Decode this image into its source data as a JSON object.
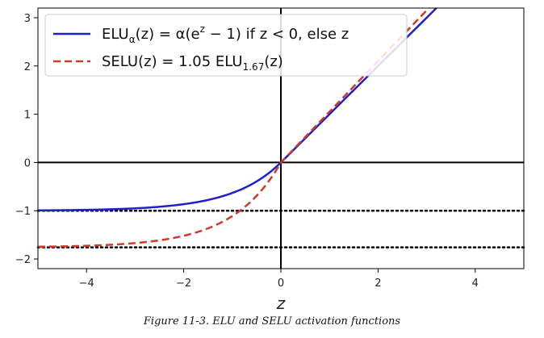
{
  "chart_data": {
    "type": "line",
    "xlim": [
      -5,
      5
    ],
    "ylim": [
      -2.2,
      3.2
    ],
    "xlabel": "z",
    "ylabel": "",
    "grid": false,
    "legend_position": "top-left",
    "x_ticks": [
      -4,
      -2,
      0,
      2,
      4
    ],
    "y_ticks": [
      -2,
      -1,
      0,
      1,
      2,
      3
    ],
    "x_tick_labels": [
      "−4",
      "−2",
      "0",
      "2",
      "4"
    ],
    "y_tick_labels": [
      "−2",
      "−1",
      "0",
      "1",
      "2",
      "3"
    ],
    "axis_lines": [
      0
    ],
    "reference_lines": [
      -1,
      -1.7581
    ],
    "series": [
      {
        "name": "ELU_α(z) = α(e^z − 1) if z < 0, else z",
        "legend_parts": {
          "main": "ELU",
          "sub": "α",
          "rest_before_sup": "(z) = α(e",
          "sup": "z",
          "rest_after_sup": " − 1) if z < 0, else z"
        },
        "color": "#1f1fcc",
        "style": "solid",
        "function": "elu",
        "alpha": 1.0,
        "scale": 1.0
      },
      {
        "name": "SELU(z) = 1.05 ELU_1.67(z)",
        "legend_parts": {
          "main": "SELU(z) = 1.05 ELU",
          "sub": "1.67",
          "rest": "(z)"
        },
        "color": "#d03a2a",
        "style": "dashed",
        "function": "elu",
        "alpha": 1.6733,
        "scale": 1.0507
      }
    ]
  },
  "caption": "Figure 11-3. ELU and SELU activation functions"
}
